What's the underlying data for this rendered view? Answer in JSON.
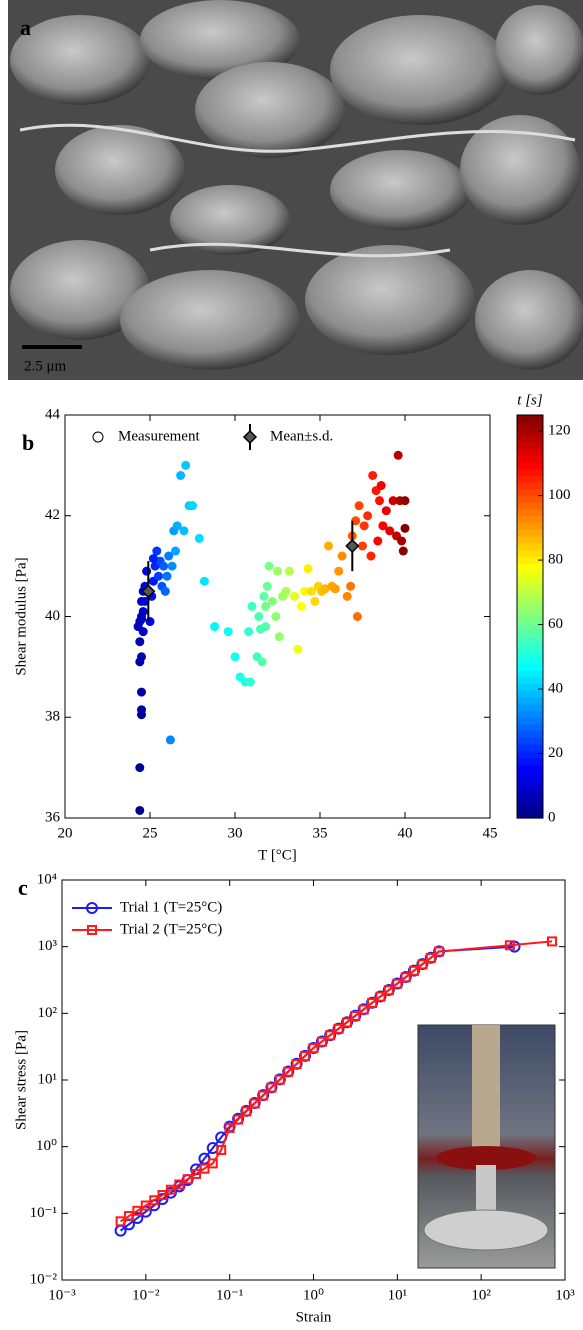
{
  "image": {
    "panel_label": "a",
    "scale_bar": "2.5 μm"
  },
  "chart_data": [
    {
      "type": "scatter",
      "panel_label": "b",
      "xlabel": "T [°C]",
      "ylabel": "Shear modulus [Pa]",
      "xlim": [
        20,
        45
      ],
      "xticks": [
        20,
        25,
        30,
        35,
        40,
        45
      ],
      "ylim": [
        36,
        44
      ],
      "yticks": [
        36,
        38,
        40,
        42,
        44
      ],
      "colorbar": {
        "label": "t [s]",
        "colormap": "jet",
        "lim": [
          0,
          125
        ],
        "ticks": [
          0,
          20,
          40,
          60,
          80,
          100,
          120
        ]
      },
      "series": [
        {
          "name": "Measurement",
          "marker": "circle",
          "x": [
            24.4,
            24.4,
            24.5,
            24.5,
            24.5,
            24.4,
            24.5,
            24.3,
            24.4,
            24.5,
            24.6,
            24.5,
            24.6,
            24.7,
            24.8,
            24.4,
            24.6,
            24.7,
            24.5,
            25.0,
            25.1,
            25.2,
            25.3,
            25.4,
            25.5,
            25.6,
            25.7,
            25.8,
            25.9,
            26.0,
            26.1,
            25.2,
            26.2,
            26.3,
            26.4,
            26.6,
            26.8,
            27.1,
            27.0,
            27.3,
            27.5,
            27.9,
            28.2,
            26.5,
            28.8,
            29.6,
            30.0,
            30.3,
            30.6,
            30.9,
            30.8,
            31.0,
            31.3,
            31.5,
            31.6,
            31.4,
            31.7,
            31.8,
            31.9,
            32.0,
            32.2,
            32.4,
            32.6,
            32.8,
            33.0,
            33.2,
            31.8,
            32.5,
            33.5,
            33.7,
            33.9,
            34.1,
            34.3,
            34.5,
            34.7,
            34.9,
            35.1,
            35.3,
            35.5,
            35.7,
            35.9,
            36.1,
            36.3,
            36.6,
            36.8,
            37.2,
            36.9,
            37.1,
            37.3,
            37.6,
            37.8,
            38.1,
            38.3,
            38.5,
            38.7,
            38.9,
            39.1,
            39.3,
            39.5,
            39.6,
            39.7,
            39.8,
            40.0,
            39.9,
            40.0,
            38.4,
            38.6,
            37.5,
            38.0
          ],
          "values": [
            36.15,
            37.0,
            38.05,
            38.15,
            38.5,
            39.1,
            39.2,
            39.8,
            39.9,
            40.0,
            40.1,
            40.3,
            40.5,
            40.6,
            40.9,
            39.5,
            39.7,
            40.3,
            39.95,
            39.9,
            40.4,
            40.7,
            41.0,
            41.3,
            40.8,
            41.1,
            40.6,
            41.0,
            40.5,
            40.8,
            41.2,
            41.15,
            37.55,
            41.0,
            41.7,
            41.8,
            42.8,
            43.0,
            41.7,
            42.2,
            42.2,
            41.55,
            40.7,
            41.3,
            39.8,
            39.7,
            39.2,
            38.8,
            38.7,
            38.7,
            39.7,
            40.2,
            39.2,
            39.75,
            39.1,
            40.0,
            40.4,
            39.8,
            40.6,
            41.0,
            40.3,
            40.0,
            39.6,
            40.4,
            40.5,
            40.9,
            40.2,
            40.9,
            40.4,
            39.35,
            40.2,
            40.5,
            40.95,
            40.5,
            40.3,
            40.6,
            40.5,
            40.55,
            41.4,
            40.6,
            40.55,
            40.9,
            41.2,
            40.4,
            40.6,
            40.0,
            41.6,
            41.9,
            42.2,
            41.8,
            42.0,
            42.8,
            42.5,
            42.3,
            41.8,
            42.1,
            41.7,
            42.3,
            41.6,
            43.2,
            42.3,
            41.5,
            42.3,
            41.3,
            41.75,
            41.5,
            42.6,
            41.4,
            41.2
          ],
          "t": [
            2,
            3,
            4,
            4,
            5,
            5,
            6,
            7,
            8,
            8,
            9,
            10,
            11,
            12,
            13,
            6,
            9,
            12,
            7,
            15,
            17,
            18,
            20,
            22,
            23,
            25,
            26,
            27,
            28,
            30,
            31,
            19,
            32,
            33,
            35,
            37,
            38,
            40,
            39,
            41,
            42,
            43,
            44,
            36,
            46,
            48,
            49,
            50,
            51,
            52,
            53,
            54,
            55,
            56,
            57,
            56,
            58,
            57,
            60,
            62,
            63,
            64,
            65,
            66,
            68,
            69,
            61,
            66,
            75,
            76,
            78,
            79,
            80,
            82,
            83,
            84,
            86,
            87,
            88,
            89,
            90,
            91,
            92,
            93,
            95,
            96,
            98,
            100,
            101,
            103,
            104,
            106,
            107,
            108,
            110,
            112,
            113,
            115,
            117,
            118,
            119,
            121,
            123,
            124,
            125,
            109,
            111,
            102,
            105
          ]
        },
        {
          "name": "Mean±s.d.",
          "marker": "diamond",
          "color": "#000000",
          "x": [
            24.9,
            36.9
          ],
          "values": [
            40.5,
            41.4
          ],
          "sd": [
            0.6,
            0.5
          ]
        }
      ]
    },
    {
      "type": "line",
      "panel_label": "c",
      "xscale": "log",
      "yscale": "log",
      "xlabel": "Strain",
      "ylabel": "Shear stress [Pa]",
      "xlim": [
        0.001,
        1000
      ],
      "ylim": [
        0.01,
        10000
      ],
      "xticks": [
        {
          "value": 0.001,
          "label": "10⁻³"
        },
        {
          "value": 0.01,
          "label": "10⁻²"
        },
        {
          "value": 0.1,
          "label": "10⁻¹"
        },
        {
          "value": 1,
          "label": "10⁰"
        },
        {
          "value": 10,
          "label": "10¹"
        },
        {
          "value": 100,
          "label": "10²"
        },
        {
          "value": 1000,
          "label": "10³"
        }
      ],
      "yticks": [
        {
          "value": 0.01,
          "label": "10⁻²"
        },
        {
          "value": 0.1,
          "label": "10⁻¹"
        },
        {
          "value": 1,
          "label": "10⁰"
        },
        {
          "value": 10,
          "label": "10¹"
        },
        {
          "value": 100,
          "label": "10²"
        },
        {
          "value": 1000,
          "label": "10³"
        },
        {
          "value": 10000,
          "label": "10⁴"
        }
      ],
      "series": [
        {
          "name": "Trial 1 (T=25°C)",
          "color": "#1a1aff",
          "marker": "circle",
          "x": [
            0.005,
            0.00629,
            0.00792,
            0.00998,
            0.0126,
            0.0158,
            0.0199,
            0.0251,
            0.0315,
            0.0397,
            0.05,
            0.0629,
            0.0792,
            0.0998,
            0.126,
            0.158,
            0.199,
            0.251,
            0.315,
            0.397,
            0.5,
            0.629,
            0.792,
            0.998,
            1.26,
            1.58,
            1.99,
            2.51,
            3.15,
            3.97,
            5,
            6.29,
            7.92,
            9.98,
            12.6,
            15.8,
            19.9,
            25.1,
            31.5,
            250
          ],
          "values": [
            0.055,
            0.0684,
            0.0851,
            0.106,
            0.132,
            0.164,
            0.204,
            0.254,
            0.316,
            0.457,
            0.661,
            0.955,
            1.38,
            2.0,
            2.62,
            3.44,
            4.51,
            5.92,
            7.76,
            10.2,
            13.4,
            17.5,
            23.0,
            30.2,
            37.8,
            47.1,
            58.9,
            73.6,
            91.9,
            115,
            144,
            179,
            224,
            280,
            350,
            437,
            546,
            682,
            851,
            1000
          ]
        },
        {
          "name": "Trial 2 (T=25°C)",
          "color": "#ff1a1a",
          "marker": "square",
          "x": [
            0.005,
            0.00629,
            0.00792,
            0.00998,
            0.0126,
            0.0158,
            0.0199,
            0.0251,
            0.0315,
            0.0397,
            0.05,
            0.0629,
            0.0792,
            0.0998,
            0.126,
            0.158,
            0.199,
            0.251,
            0.315,
            0.397,
            0.5,
            0.629,
            0.792,
            0.998,
            1.26,
            1.58,
            1.99,
            2.51,
            3.15,
            3.97,
            5,
            6.29,
            7.92,
            9.98,
            12.6,
            15.8,
            19.9,
            25.1,
            31.5,
            220,
            700
          ],
          "values": [
            0.0759,
            0.091,
            0.109,
            0.131,
            0.157,
            0.188,
            0.226,
            0.271,
            0.325,
            0.39,
            0.468,
            0.561,
            0.891,
            1.91,
            2.55,
            3.38,
            4.45,
            5.85,
            7.7,
            10.1,
            13.3,
            17.3,
            22.8,
            30.0,
            37.5,
            46.8,
            58.5,
            73.0,
            91.2,
            114,
            143,
            178,
            222,
            278,
            347,
            434,
            542,
            678,
            845,
            1050,
            1200
          ]
        }
      ]
    }
  ]
}
